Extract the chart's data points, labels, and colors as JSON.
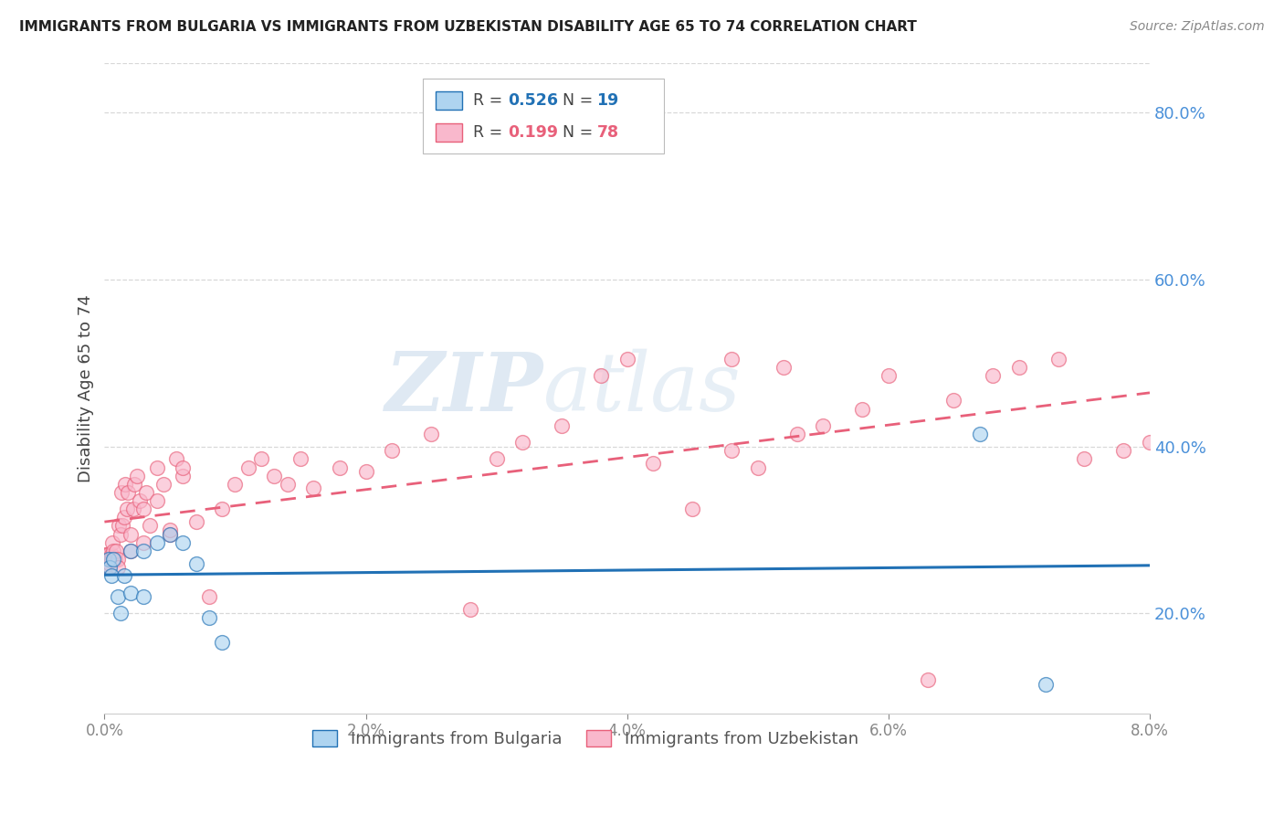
{
  "title": "IMMIGRANTS FROM BULGARIA VS IMMIGRANTS FROM UZBEKISTAN DISABILITY AGE 65 TO 74 CORRELATION CHART",
  "source": "Source: ZipAtlas.com",
  "ylabel": "Disability Age 65 to 74",
  "legend_label_1": "Immigrants from Bulgaria",
  "legend_label_2": "Immigrants from Uzbekistan",
  "R1": 0.526,
  "N1": 19,
  "R2": 0.199,
  "N2": 78,
  "color1": "#aed4f0",
  "color2": "#f9b8cc",
  "trendline1_color": "#2171b5",
  "trendline2_color": "#e8607a",
  "xlim": [
    0.0,
    0.08
  ],
  "ylim": [
    0.08,
    0.86
  ],
  "xticks": [
    0.0,
    0.02,
    0.04,
    0.06,
    0.08
  ],
  "yticks_right": [
    0.2,
    0.4,
    0.6,
    0.8
  ],
  "bulgaria_x": [
    0.0003,
    0.0004,
    0.0005,
    0.0007,
    0.001,
    0.0012,
    0.0015,
    0.002,
    0.002,
    0.003,
    0.003,
    0.004,
    0.005,
    0.006,
    0.007,
    0.008,
    0.009,
    0.067,
    0.072
  ],
  "bulgaria_y": [
    0.265,
    0.255,
    0.245,
    0.265,
    0.22,
    0.2,
    0.245,
    0.275,
    0.225,
    0.275,
    0.22,
    0.285,
    0.295,
    0.285,
    0.26,
    0.195,
    0.165,
    0.415,
    0.115
  ],
  "uzbekistan_x": [
    0.0001,
    0.0002,
    0.0002,
    0.0003,
    0.0003,
    0.0004,
    0.0005,
    0.0005,
    0.0006,
    0.0007,
    0.0008,
    0.0009,
    0.001,
    0.001,
    0.0011,
    0.0012,
    0.0013,
    0.0014,
    0.0015,
    0.0016,
    0.0017,
    0.0018,
    0.002,
    0.002,
    0.0022,
    0.0023,
    0.0025,
    0.0027,
    0.003,
    0.003,
    0.0032,
    0.0035,
    0.004,
    0.004,
    0.0045,
    0.005,
    0.005,
    0.0055,
    0.006,
    0.006,
    0.007,
    0.008,
    0.009,
    0.01,
    0.011,
    0.012,
    0.013,
    0.014,
    0.015,
    0.016,
    0.018,
    0.02,
    0.022,
    0.025,
    0.028,
    0.03,
    0.032,
    0.035,
    0.038,
    0.04,
    0.042,
    0.045,
    0.048,
    0.05,
    0.053,
    0.055,
    0.058,
    0.06,
    0.063,
    0.065,
    0.068,
    0.07,
    0.073,
    0.075,
    0.078,
    0.08,
    0.048,
    0.052
  ],
  "uzbekistan_y": [
    0.27,
    0.255,
    0.27,
    0.255,
    0.27,
    0.26,
    0.27,
    0.265,
    0.285,
    0.275,
    0.265,
    0.275,
    0.265,
    0.255,
    0.305,
    0.295,
    0.345,
    0.305,
    0.315,
    0.355,
    0.325,
    0.345,
    0.275,
    0.295,
    0.325,
    0.355,
    0.365,
    0.335,
    0.285,
    0.325,
    0.345,
    0.305,
    0.375,
    0.335,
    0.355,
    0.295,
    0.3,
    0.385,
    0.365,
    0.375,
    0.31,
    0.22,
    0.325,
    0.355,
    0.375,
    0.385,
    0.365,
    0.355,
    0.385,
    0.35,
    0.375,
    0.37,
    0.395,
    0.415,
    0.205,
    0.385,
    0.405,
    0.425,
    0.485,
    0.505,
    0.38,
    0.325,
    0.395,
    0.375,
    0.415,
    0.425,
    0.445,
    0.485,
    0.12,
    0.455,
    0.485,
    0.495,
    0.505,
    0.385,
    0.395,
    0.405,
    0.505,
    0.495
  ],
  "watermark_zip": "ZIP",
  "watermark_atlas": "atlas",
  "background_color": "#ffffff",
  "grid_color": "#d8d8d8",
  "title_color": "#222222",
  "axis_label_color": "#444444",
  "right_axis_tick_color": "#4a90d9",
  "source_color": "#888888",
  "xtick_color": "#888888"
}
